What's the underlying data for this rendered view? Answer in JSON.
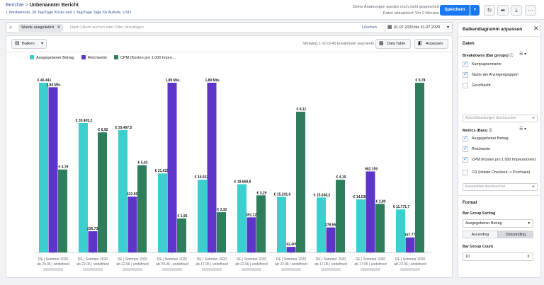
{
  "header": {
    "breadcrumb_root": "Berichte",
    "breadcrumb_sep": ">",
    "breadcrumb_current": "Unbenannter Bericht",
    "subtitle": "1 Werbekonto, 28 Tag/Tage Klicks und 1 Tag/Tage Tage für Aufrufe, USD",
    "save_status": "Deine Änderungen wurden noch nicht gespeichert",
    "updated": "Daten aktualisiert: Vor 2 Minuten",
    "save_label": "Speichern"
  },
  "filter": {
    "chip": "Wurde ausgeliefert",
    "placeholder": "Nach Filtern suchen oder Filter hinzufügen",
    "clear_label": "Löschen",
    "date_range": "01.07.2020 bis 31.07.2020"
  },
  "toolbar": {
    "chart_type_label": "Balken",
    "showing": "Showing 1-10 of 40 breakdown segments",
    "data_table_label": "Data Table",
    "fit_label": "Anpassen"
  },
  "chart_data": {
    "type": "bar",
    "categories": [
      "DE | Sommer 2020 | ab 29.06",
      "DE | Sommer 2020 | ab 22.06",
      "DE | Sommer 2020 | ab 22.06",
      "DE | Sommer 2020 | ab 29.06",
      "DE | Sommer 2020 | ab 17.06",
      "DE | Sommer 2020 | ab 22.06",
      "DE | Sommer 2020 | ab 22.06",
      "DE | Sommer 2020 | ab 17.06",
      "DE | Sommer 2020 | ab 17.06",
      "DE | Sommer 2020 | ab 22.06"
    ],
    "series": [
      {
        "name": "Ausgegebener Betrag",
        "color": "#3ccfcf",
        "values": [
          46441,
          35405.2,
          33497.5,
          21625.6,
          19922.6,
          18668.8,
          15231.9,
          15038.2,
          14536.9,
          11771.7
        ],
        "labels": [
          "€ 46.441",
          "€ 35.405,2",
          "€ 33.497,5",
          "€ 21.625,6",
          "€ 19.922,6",
          "€ 18.668,8",
          "€ 15.231,9",
          "€ 15.038,2",
          "€ 14.536,9",
          "€ 11.771,7"
        ]
      },
      {
        "name": "Reichweite",
        "color": "#5e35c9",
        "values": [
          1840000,
          236738,
          622858,
          1890000,
          1890000,
          391121,
          62409,
          278658,
          902159,
          167777
        ],
        "labels": [
          "1,84 Mio.",
          "236.738",
          "622.858",
          "1,89 Mio.",
          "1,89 Mio.",
          "391.121",
          "62.409",
          "278.658",
          "902.159",
          "167.777"
        ]
      },
      {
        "name": "CPM (Kosten pro 1.000 Impre...",
        "color": "#2e7d5b",
        "values": [
          4.78,
          6.92,
          5.03,
          1.96,
          2.32,
          3.29,
          8.11,
          4.19,
          2.8,
          9.78
        ],
        "labels": [
          "€ 4,78",
          "€ 6,92",
          "€ 5,03",
          "€ 1,96",
          "€ 2,32",
          "€ 3,29",
          "€ 8,11",
          "€ 4,19",
          "€ 2,80",
          "€ 9,78"
        ]
      }
    ],
    "scale_note": "each series scaled independently to its own max",
    "grid": false,
    "legend": "top-left"
  },
  "panel": {
    "title": "Balkendiagramm anpassen",
    "data_section": "Daten",
    "breakdowns_label": "Breakdowns (Bar groups)",
    "breakdowns": [
      {
        "label": "Kampagnenname",
        "checked": true
      },
      {
        "label": "Name der Anzeigengruppen",
        "checked": true
      },
      {
        "label": "Geschlecht",
        "checked": false
      }
    ],
    "breakdowns_search": "Aufschlüsselungen durchsuchen",
    "metrics_label": "Metrics (Bars)",
    "metrics": [
      {
        "label": "Ausgegebener Betrag",
        "checked": true
      },
      {
        "label": "Reichweite",
        "checked": true
      },
      {
        "label": "CPM (Kosten pro 1.000 Impressionen)",
        "checked": true
      },
      {
        "label": "CR (Initiate Checkout -> Purchase)",
        "checked": false
      }
    ],
    "metrics_search": "Kennzahlen durchsuchen",
    "format_section": "Format",
    "sorting_label": "Bar Group Sorting",
    "sorting_value": "Ausgegebener Betrag",
    "ascending_label": "Ascending",
    "descending_label": "Descending",
    "count_label": "Bar Group Count",
    "count_value": "10"
  }
}
